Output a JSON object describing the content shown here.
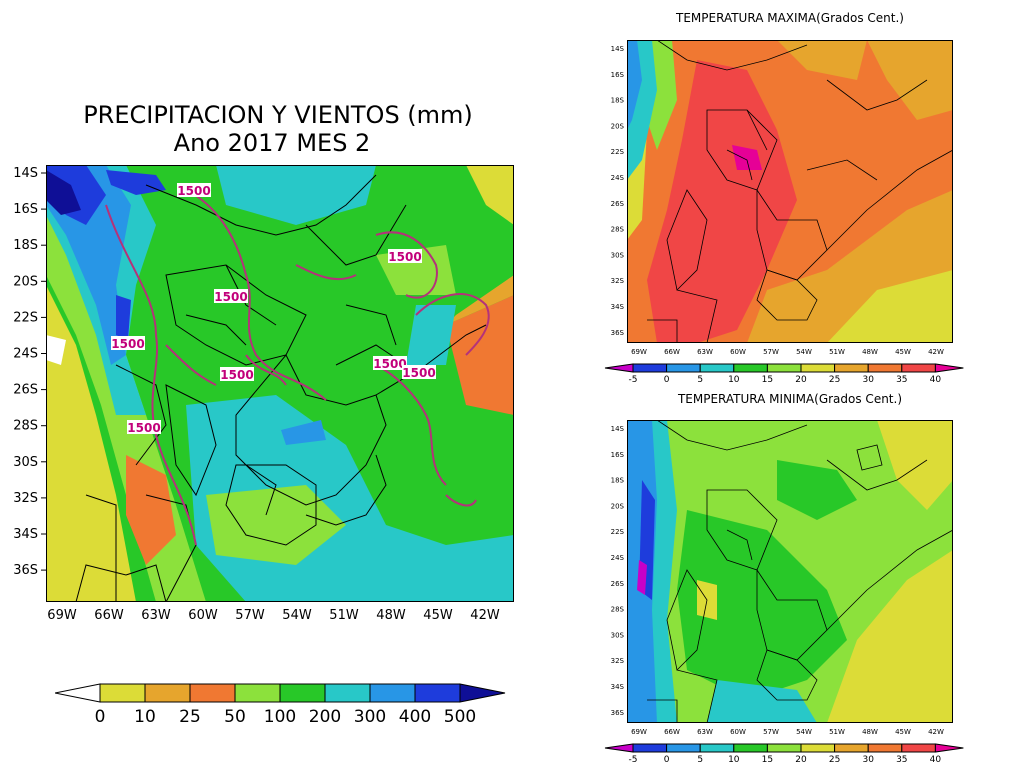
{
  "main": {
    "title_line1": "PRECIPITACION Y VIENTOS (mm)",
    "title_line2": "Ano 2017 MES 2",
    "lat_ticks": [
      "14S",
      "16S",
      "18S",
      "20S",
      "22S",
      "24S",
      "26S",
      "28S",
      "30S",
      "32S",
      "34S",
      "36S"
    ],
    "lon_ticks": [
      "69W",
      "66W",
      "63W",
      "60W",
      "57W",
      "54W",
      "51W",
      "48W",
      "45W",
      "42W"
    ],
    "contour_labels": [
      "1500",
      "1500",
      "1500",
      "1500",
      "1500",
      "1500",
      "1500",
      "1500"
    ],
    "colorbar": {
      "labels": [
        "0",
        "10",
        "25",
        "50",
        "100",
        "200",
        "300",
        "400",
        "500"
      ],
      "colors": [
        "#ffffff",
        "#dcdc37",
        "#e6a52d",
        "#f07832",
        "#8ce13c",
        "#28c828",
        "#28c8c8",
        "#2896e6",
        "#1e3cdc",
        "#0f0f96"
      ]
    }
  },
  "tmax": {
    "title": "TEMPERATURA MAXIMA(Grados Cent.)",
    "lat_ticks": [
      "14S",
      "16S",
      "18S",
      "20S",
      "22S",
      "24S",
      "26S",
      "28S",
      "30S",
      "32S",
      "34S",
      "36S"
    ],
    "lon_ticks": [
      "69W",
      "66W",
      "63W",
      "60W",
      "57W",
      "54W",
      "51W",
      "48W",
      "45W",
      "42W"
    ],
    "colorbar": {
      "labels": [
        "-5",
        "0",
        "5",
        "10",
        "15",
        "20",
        "25",
        "30",
        "35",
        "40"
      ],
      "colors": [
        "#c800c8",
        "#1e3cdc",
        "#2896e6",
        "#28c8c8",
        "#28c828",
        "#8ce13c",
        "#dcdc37",
        "#e6a52d",
        "#f07832",
        "#f04646",
        "#e60096"
      ]
    }
  },
  "tmin": {
    "title": "TEMPERATURA MINIMA(Grados Cent.)",
    "lat_ticks": [
      "14S",
      "16S",
      "18S",
      "20S",
      "22S",
      "24S",
      "26S",
      "28S",
      "30S",
      "32S",
      "34S",
      "36S"
    ],
    "lon_ticks": [
      "69W",
      "66W",
      "63W",
      "60W",
      "57W",
      "54W",
      "51W",
      "48W",
      "45W",
      "42W"
    ],
    "colorbar": {
      "labels": [
        "-5",
        "0",
        "5",
        "10",
        "15",
        "20",
        "25",
        "30",
        "35",
        "40"
      ],
      "colors": [
        "#c800c8",
        "#1e3cdc",
        "#2896e6",
        "#28c8c8",
        "#28c828",
        "#8ce13c",
        "#dcdc37",
        "#e6a52d",
        "#f07832",
        "#f04646",
        "#e60096"
      ]
    }
  }
}
